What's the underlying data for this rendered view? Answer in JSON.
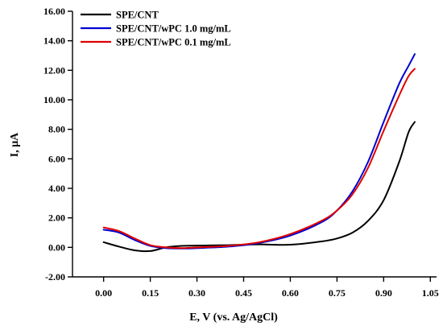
{
  "chart_data": {
    "type": "line",
    "xlabel": "E, V (vs. Ag/AgCl)",
    "ylabel": "I, μA",
    "xlim": [
      -0.1,
      1.07
    ],
    "ylim": [
      -2.0,
      16.0
    ],
    "x_ticks": [
      0.0,
      0.15,
      0.3,
      0.45,
      0.6,
      0.75,
      0.9,
      1.05
    ],
    "x_tick_labels": [
      "0.00",
      "0.15",
      "0.30",
      "0.45",
      "0.60",
      "0.75",
      "0.90",
      "1.05"
    ],
    "y_ticks": [
      -2,
      0,
      2,
      4,
      6,
      8,
      10,
      12,
      14,
      16
    ],
    "y_tick_labels": [
      "-2.00",
      "0.00",
      "2.00",
      "4.00",
      "6.00",
      "8.00",
      "10.00",
      "12.00",
      "14.00",
      "16.00"
    ],
    "grid": false,
    "legend_position": "top-left",
    "series": [
      {
        "name": "SPE/CNT",
        "color": "#000000",
        "x": [
          0.0,
          0.05,
          0.1,
          0.15,
          0.2,
          0.25,
          0.3,
          0.4,
          0.5,
          0.6,
          0.7,
          0.75,
          0.8,
          0.85,
          0.9,
          0.95,
          0.98,
          1.0
        ],
        "y": [
          0.35,
          0.05,
          -0.2,
          -0.25,
          0.0,
          0.1,
          0.12,
          0.15,
          0.2,
          0.18,
          0.4,
          0.6,
          1.0,
          1.8,
          3.2,
          5.8,
          7.8,
          8.5
        ]
      },
      {
        "name": "SPE/CNT/wPC 1.0 mg/mL",
        "color": "#0000d0",
        "x": [
          0.0,
          0.05,
          0.1,
          0.15,
          0.2,
          0.25,
          0.3,
          0.4,
          0.5,
          0.6,
          0.7,
          0.75,
          0.8,
          0.85,
          0.9,
          0.95,
          0.98,
          1.0
        ],
        "y": [
          1.2,
          1.0,
          0.5,
          0.1,
          -0.05,
          -0.08,
          -0.05,
          0.05,
          0.3,
          0.8,
          1.7,
          2.5,
          3.8,
          5.8,
          8.5,
          11.1,
          12.3,
          13.1
        ]
      },
      {
        "name": "SPE/CNT/wPC 0.1 mg/mL",
        "color": "#e00000",
        "x": [
          0.0,
          0.05,
          0.1,
          0.15,
          0.2,
          0.25,
          0.3,
          0.4,
          0.5,
          0.6,
          0.7,
          0.75,
          0.8,
          0.85,
          0.9,
          0.95,
          0.98,
          1.0
        ],
        "y": [
          1.35,
          1.1,
          0.6,
          0.15,
          0.0,
          -0.05,
          0.0,
          0.1,
          0.35,
          0.9,
          1.8,
          2.5,
          3.6,
          5.4,
          7.9,
          10.3,
          11.6,
          12.1
        ]
      }
    ]
  }
}
